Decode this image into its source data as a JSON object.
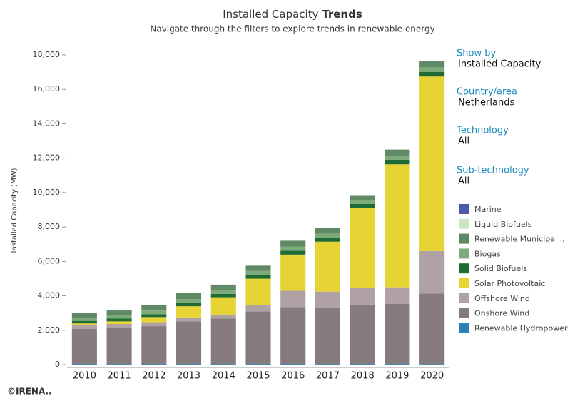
{
  "chart_data": {
    "type": "stacked_bar",
    "title": "Installed Capacity",
    "title_emphasis": "Trends",
    "subtitle": "Navigate through the filters to explore trends in renewable energy",
    "y_label": "Installed Capacity (MW)",
    "categories": [
      "2010",
      "2011",
      "2012",
      "2013",
      "2014",
      "2015",
      "2016",
      "2017",
      "2018",
      "2019",
      "2020"
    ],
    "series": [
      {
        "name": "Renewable Hydropower",
        "color": "#2b80b5",
        "values": [
          37,
          37,
          37,
          37,
          37,
          37,
          37,
          37,
          37,
          37,
          37
        ]
      },
      {
        "name": "Onshore Wind",
        "color": "#857a7c",
        "values": [
          2040,
          2100,
          2200,
          2480,
          2650,
          3050,
          3300,
          3250,
          3450,
          3500,
          4100
        ]
      },
      {
        "name": "Offshore Wind",
        "color": "#b0a1a5",
        "values": [
          228,
          228,
          228,
          228,
          228,
          357,
          957,
          957,
          957,
          957,
          2460
        ]
      },
      {
        "name": "Solar Photovoltaic",
        "color": "#e6d334",
        "values": [
          90,
          150,
          300,
          650,
          1000,
          1550,
          2100,
          2900,
          4650,
          7150,
          10150
        ]
      },
      {
        "name": "Solid Biofuels",
        "color": "#1f6b35",
        "values": [
          150,
          160,
          170,
          190,
          200,
          220,
          230,
          230,
          240,
          260,
          270
        ]
      },
      {
        "name": "Biogas",
        "color": "#7daa79",
        "values": [
          190,
          200,
          210,
          220,
          220,
          230,
          240,
          240,
          240,
          250,
          260
        ]
      },
      {
        "name": "Renewable Municipal ..",
        "color": "#5f8a65",
        "values": [
          265,
          275,
          305,
          345,
          315,
          306,
          336,
          336,
          276,
          346,
          373
        ]
      },
      {
        "name": "Liquid Biofuels",
        "color": "#cbe5c5",
        "values": [
          0,
          0,
          0,
          0,
          0,
          0,
          0,
          0,
          0,
          0,
          0
        ]
      },
      {
        "name": "Marine",
        "color": "#4a5aa8",
        "values": [
          0,
          0,
          0,
          0,
          0,
          0,
          0,
          0,
          0,
          0,
          0
        ]
      }
    ],
    "ylim": [
      0,
      18000
    ],
    "yticks": [
      0,
      {
        "value": 2000,
        "label": "2,000"
      },
      {
        "value": 4000,
        "label": "4,000"
      },
      {
        "value": 6000,
        "label": "6,000"
      },
      {
        "value": 8000,
        "label": "8,000"
      },
      {
        "value": 10000,
        "label": "10,000"
      },
      {
        "value": 12000,
        "label": "12,000"
      },
      {
        "value": 14000,
        "label": "14,000"
      },
      {
        "value": 16000,
        "label": "16,000"
      },
      {
        "value": 18000,
        "label": "18,000"
      }
    ],
    "filters": [
      {
        "label": "Show by",
        "value": "Installed Capacity"
      },
      {
        "label": "Country/area",
        "value": "Netherlands"
      },
      {
        "label": "Technology",
        "value": "All"
      },
      {
        "label": "Sub-technology",
        "value": "All"
      }
    ],
    "footer": "©IRENA.."
  }
}
